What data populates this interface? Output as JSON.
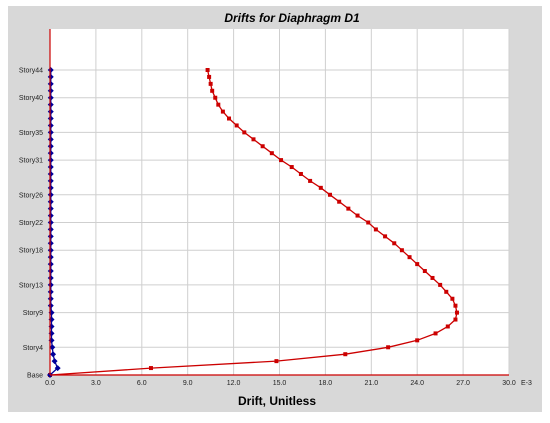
{
  "chart_data": {
    "type": "line",
    "title": "Drifts for Diaphragm D1",
    "xlabel": "Drift, Unitless",
    "ylabel": "",
    "x_unit_suffix": "E-3",
    "xlim": [
      0,
      30
    ],
    "x_ticks": [
      "0.0",
      "3.0",
      "6.0",
      "9.0",
      "12.0",
      "15.0",
      "18.0",
      "21.0",
      "24.0",
      "27.0",
      "30.0"
    ],
    "ylim": [
      0,
      44
    ],
    "y_ticks": [
      {
        "label": "Base",
        "story": 0
      },
      {
        "label": "Story4",
        "story": 4
      },
      {
        "label": "Story9",
        "story": 9
      },
      {
        "label": "Story13",
        "story": 13
      },
      {
        "label": "Story18",
        "story": 18
      },
      {
        "label": "Story22",
        "story": 22
      },
      {
        "label": "Story26",
        "story": 26
      },
      {
        "label": "Story31",
        "story": 31
      },
      {
        "label": "Story35",
        "story": 35
      },
      {
        "label": "Story40",
        "story": 40
      },
      {
        "label": "Story44",
        "story": 44
      }
    ],
    "grid": true,
    "legend": "none",
    "series": [
      {
        "color": "#cc0000",
        "values": [
          [
            0.0,
            0
          ],
          [
            6.6,
            1
          ],
          [
            14.8,
            2
          ],
          [
            19.3,
            3
          ],
          [
            22.1,
            4
          ],
          [
            24.0,
            5
          ],
          [
            25.2,
            6
          ],
          [
            26.0,
            7
          ],
          [
            26.5,
            8
          ],
          [
            26.6,
            9
          ],
          [
            26.5,
            10
          ],
          [
            26.3,
            11
          ],
          [
            25.9,
            12
          ],
          [
            25.5,
            13
          ],
          [
            25.0,
            14
          ],
          [
            24.5,
            15
          ],
          [
            24.0,
            16
          ],
          [
            23.5,
            17
          ],
          [
            23.0,
            18
          ],
          [
            22.5,
            19
          ],
          [
            21.9,
            20
          ],
          [
            21.3,
            21
          ],
          [
            20.8,
            22
          ],
          [
            20.1,
            23
          ],
          [
            19.5,
            24
          ],
          [
            18.9,
            25
          ],
          [
            18.3,
            26
          ],
          [
            17.7,
            27
          ],
          [
            17.0,
            28
          ],
          [
            16.4,
            29
          ],
          [
            15.8,
            30
          ],
          [
            15.1,
            31
          ],
          [
            14.5,
            32
          ],
          [
            13.9,
            33
          ],
          [
            13.3,
            34
          ],
          [
            12.7,
            35
          ],
          [
            12.2,
            36
          ],
          [
            11.7,
            37
          ],
          [
            11.3,
            38
          ],
          [
            11.0,
            39
          ],
          [
            10.8,
            40
          ],
          [
            10.6,
            41
          ],
          [
            10.5,
            42
          ],
          [
            10.4,
            43
          ],
          [
            10.3,
            44
          ]
        ]
      },
      {
        "color": "#000099",
        "values": [
          [
            0.0,
            0
          ],
          [
            0.5,
            1
          ],
          [
            0.3,
            2
          ],
          [
            0.2,
            3
          ],
          [
            0.15,
            4
          ],
          [
            0.1,
            5
          ],
          [
            0.1,
            6
          ],
          [
            0.1,
            7
          ],
          [
            0.1,
            8
          ],
          [
            0.1,
            9
          ],
          [
            0.05,
            10
          ],
          [
            0.05,
            11
          ],
          [
            0.05,
            12
          ],
          [
            0.05,
            13
          ],
          [
            0.05,
            14
          ],
          [
            0.05,
            15
          ],
          [
            0.05,
            16
          ],
          [
            0.05,
            17
          ],
          [
            0.05,
            18
          ],
          [
            0.05,
            19
          ],
          [
            0.05,
            20
          ],
          [
            0.05,
            21
          ],
          [
            0.05,
            22
          ],
          [
            0.05,
            23
          ],
          [
            0.05,
            24
          ],
          [
            0.05,
            25
          ],
          [
            0.05,
            26
          ],
          [
            0.05,
            27
          ],
          [
            0.05,
            28
          ],
          [
            0.05,
            29
          ],
          [
            0.05,
            30
          ],
          [
            0.05,
            31
          ],
          [
            0.05,
            32
          ],
          [
            0.05,
            33
          ],
          [
            0.05,
            34
          ],
          [
            0.05,
            35
          ],
          [
            0.05,
            36
          ],
          [
            0.05,
            37
          ],
          [
            0.05,
            38
          ],
          [
            0.05,
            39
          ],
          [
            0.05,
            40
          ],
          [
            0.05,
            41
          ],
          [
            0.05,
            42
          ],
          [
            0.05,
            43
          ],
          [
            0.05,
            44
          ]
        ]
      }
    ]
  }
}
